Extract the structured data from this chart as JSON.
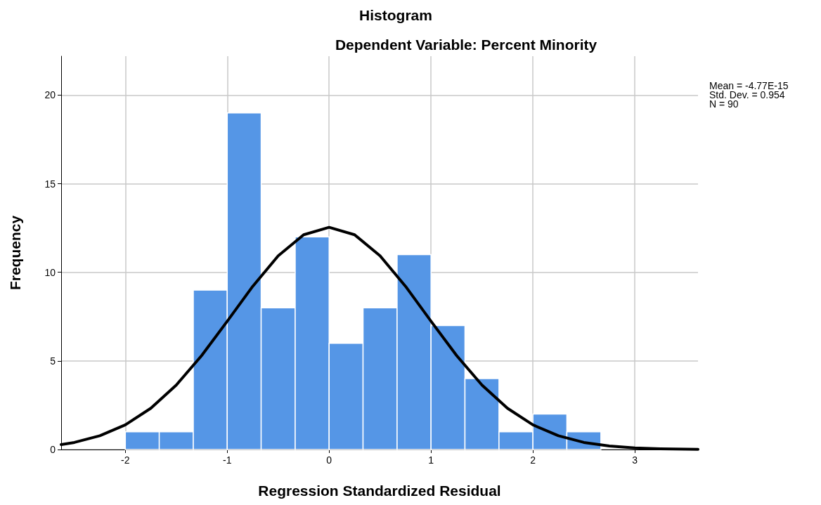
{
  "chart_data": {
    "type": "histogram",
    "title": "Histogram",
    "subtitle": "Dependent Variable: Percent Minority",
    "xlabel": "Regression Standardized Residual",
    "ylabel": "Frequency",
    "xlim": [
      -2.63,
      3.62
    ],
    "xticks": [
      -2,
      -1,
      0,
      1,
      2,
      3
    ],
    "ylim": [
      0,
      22.2
    ],
    "yticks": [
      0,
      5,
      10,
      15,
      20
    ],
    "grid": true,
    "annotations": [
      "Mean = -4.77E-15",
      "Std. Dev. = 0.954",
      "N = 90"
    ],
    "series": [
      {
        "type": "histogram",
        "color": "#5596e6",
        "bins": [
          -2,
          -1.667,
          -1.333,
          -1,
          -0.667,
          -0.333,
          0,
          0.333,
          0.667,
          1,
          1.333,
          1.667,
          2,
          2.333,
          2.667
        ],
        "values": [
          1,
          1,
          9,
          19,
          8,
          12,
          6,
          8,
          11,
          7,
          4,
          1,
          2,
          1
        ]
      },
      {
        "type": "line",
        "color": "#000000",
        "marker": "none",
        "line_style": "solid",
        "x": [
          -2.63,
          -2.5,
          -2.25,
          -2,
          -1.75,
          -1.5,
          -1.25,
          -1,
          -0.75,
          -0.5,
          -0.25,
          0,
          0.25,
          0.5,
          0.75,
          1,
          1.25,
          1.5,
          1.75,
          2,
          2.25,
          2.5,
          2.75,
          3,
          3.25,
          3.5,
          3.62
        ],
        "values": [
          0.28,
          0.4,
          0.78,
          1.39,
          2.33,
          3.64,
          5.31,
          7.24,
          9.21,
          10.93,
          12.12,
          12.54,
          12.12,
          10.93,
          9.21,
          7.24,
          5.31,
          3.64,
          2.33,
          1.39,
          0.78,
          0.4,
          0.2,
          0.09,
          0.04,
          0.02,
          0.01
        ]
      }
    ]
  }
}
